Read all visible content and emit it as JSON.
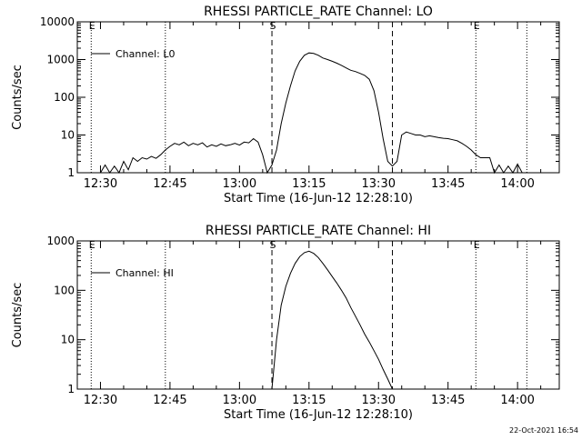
{
  "chart_data": [
    {
      "type": "line",
      "title": "RHESSI PARTICLE_RATE Channel: LO",
      "ylabel": "Counts/sec",
      "xlabel": "Start Time (16-Jun-12 12:28:10)",
      "yscale": "log",
      "ylim": [
        1,
        10000
      ],
      "xlim_minutes": [
        -5,
        99
      ],
      "yticks": [
        {
          "value": 1,
          "label": "1"
        },
        {
          "value": 10,
          "label": "10"
        },
        {
          "value": 100,
          "label": "100"
        },
        {
          "value": 1000,
          "label": "1000"
        },
        {
          "value": 10000,
          "label": "10000"
        }
      ],
      "xticks": [
        "12:30",
        "12:45",
        "13:00",
        "13:15",
        "13:30",
        "13:45",
        "14:00"
      ],
      "legend": {
        "label": "Channel: L0",
        "position": "top-left"
      },
      "markers": [
        {
          "time": "12:28",
          "style": "dotted",
          "label": "E"
        },
        {
          "time": "12:44",
          "style": "dotted",
          "label": ""
        },
        {
          "time": "13:07",
          "style": "dashed",
          "label": "S"
        },
        {
          "time": "13:33",
          "style": "dashed",
          "label": ""
        },
        {
          "time": "13:51",
          "style": "dotted",
          "label": "E"
        },
        {
          "time": "14:02",
          "style": "dotted",
          "label": ""
        }
      ],
      "series": [
        {
          "name": "Channel: L0",
          "points": [
            [
              "12:30",
              1
            ],
            [
              "12:31",
              1.6
            ],
            [
              "12:32",
              1
            ],
            [
              "12:33",
              1.5
            ],
            [
              "12:34",
              1
            ],
            [
              "12:35",
              2
            ],
            [
              "12:36",
              1.2
            ],
            [
              "12:37",
              2.5
            ],
            [
              "12:38",
              2
            ],
            [
              "12:39",
              2.5
            ],
            [
              "12:40",
              2.3
            ],
            [
              "12:41",
              2.7
            ],
            [
              "12:42",
              2.4
            ],
            [
              "12:43",
              3
            ],
            [
              "12:44",
              4
            ],
            [
              "12:45",
              5
            ],
            [
              "12:46",
              6
            ],
            [
              "12:47",
              5.5
            ],
            [
              "12:48",
              6.5
            ],
            [
              "12:49",
              5.2
            ],
            [
              "12:50",
              6
            ],
            [
              "12:51",
              5.5
            ],
            [
              "12:52",
              6.2
            ],
            [
              "12:53",
              4.8
            ],
            [
              "12:54",
              5.5
            ],
            [
              "12:55",
              5
            ],
            [
              "12:56",
              5.8
            ],
            [
              "12:57",
              5.2
            ],
            [
              "12:58",
              5.5
            ],
            [
              "12:59",
              6
            ],
            [
              "13:00",
              5.4
            ],
            [
              "13:01",
              6.5
            ],
            [
              "13:02",
              6.2
            ],
            [
              "13:03",
              8
            ],
            [
              "13:04",
              6.5
            ],
            [
              "13:05",
              3
            ],
            [
              "13:06",
              1
            ],
            [
              "13:07",
              1.6
            ],
            [
              "13:08",
              4
            ],
            [
              "13:09",
              20
            ],
            [
              "13:10",
              70
            ],
            [
              "13:11",
              200
            ],
            [
              "13:12",
              500
            ],
            [
              "13:13",
              900
            ],
            [
              "13:14",
              1300
            ],
            [
              "13:15",
              1500
            ],
            [
              "13:16",
              1450
            ],
            [
              "13:17",
              1300
            ],
            [
              "13:18",
              1100
            ],
            [
              "13:19",
              1000
            ],
            [
              "13:20",
              900
            ],
            [
              "13:21",
              800
            ],
            [
              "13:22",
              700
            ],
            [
              "13:23",
              600
            ],
            [
              "13:24",
              520
            ],
            [
              "13:25",
              480
            ],
            [
              "13:26",
              430
            ],
            [
              "13:27",
              380
            ],
            [
              "13:28",
              300
            ],
            [
              "13:29",
              150
            ],
            [
              "13:30",
              40
            ],
            [
              "13:31",
              8
            ],
            [
              "13:32",
              2
            ],
            [
              "13:33",
              1.5
            ],
            [
              "13:34",
              2
            ],
            [
              "13:35",
              10
            ],
            [
              "13:36",
              12
            ],
            [
              "13:37",
              11
            ],
            [
              "13:38",
              10
            ],
            [
              "13:39",
              10
            ],
            [
              "13:40",
              9
            ],
            [
              "13:41",
              9.5
            ],
            [
              "13:42",
              9
            ],
            [
              "13:43",
              8.5
            ],
            [
              "13:44",
              8.2
            ],
            [
              "13:45",
              8
            ],
            [
              "13:46",
              7.5
            ],
            [
              "13:47",
              7
            ],
            [
              "13:48",
              6
            ],
            [
              "13:49",
              5
            ],
            [
              "13:50",
              4
            ],
            [
              "13:51",
              3
            ],
            [
              "13:52",
              2.5
            ],
            [
              "13:53",
              2.5
            ],
            [
              "13:54",
              2.5
            ],
            [
              "13:55",
              1
            ],
            [
              "13:56",
              1.6
            ],
            [
              "13:57",
              1
            ],
            [
              "13:58",
              1.5
            ],
            [
              "13:59",
              1
            ],
            [
              "14:00",
              1.7
            ],
            [
              "14:01",
              1
            ]
          ]
        }
      ]
    },
    {
      "type": "line",
      "title": "RHESSI PARTICLE_RATE Channel: HI",
      "ylabel": "Counts/sec",
      "xlabel": "Start Time (16-Jun-12 12:28:10)",
      "yscale": "log",
      "ylim": [
        1,
        1000
      ],
      "xlim_minutes": [
        -5,
        99
      ],
      "yticks": [
        {
          "value": 1,
          "label": "1"
        },
        {
          "value": 10,
          "label": "10"
        },
        {
          "value": 100,
          "label": "100"
        },
        {
          "value": 1000,
          "label": "1000"
        }
      ],
      "xticks": [
        "12:30",
        "12:45",
        "13:00",
        "13:15",
        "13:30",
        "13:45",
        "14:00"
      ],
      "legend": {
        "label": "Channel: HI",
        "position": "top-left"
      },
      "markers": [
        {
          "time": "12:28",
          "style": "dotted",
          "label": "E"
        },
        {
          "time": "12:44",
          "style": "dotted",
          "label": ""
        },
        {
          "time": "13:07",
          "style": "dashed",
          "label": "S"
        },
        {
          "time": "13:33",
          "style": "dashed",
          "label": ""
        },
        {
          "time": "13:51",
          "style": "dotted",
          "label": "E"
        },
        {
          "time": "14:02",
          "style": "dotted",
          "label": ""
        }
      ],
      "series": [
        {
          "name": "Channel: HI",
          "points": [
            [
              "13:07",
              1
            ],
            [
              "13:08",
              10
            ],
            [
              "13:09",
              50
            ],
            [
              "13:10",
              120
            ],
            [
              "13:11",
              220
            ],
            [
              "13:12",
              350
            ],
            [
              "13:13",
              480
            ],
            [
              "13:14",
              580
            ],
            [
              "13:15",
              620
            ],
            [
              "13:16",
              560
            ],
            [
              "13:17",
              460
            ],
            [
              "13:18",
              350
            ],
            [
              "13:19",
              260
            ],
            [
              "13:20",
              190
            ],
            [
              "13:21",
              140
            ],
            [
              "13:22",
              100
            ],
            [
              "13:23",
              70
            ],
            [
              "13:24",
              45
            ],
            [
              "13:25",
              30
            ],
            [
              "13:26",
              20
            ],
            [
              "13:27",
              13
            ],
            [
              "13:28",
              9
            ],
            [
              "13:29",
              6
            ],
            [
              "13:30",
              4
            ],
            [
              "13:31",
              2.5
            ],
            [
              "13:32",
              1.6
            ],
            [
              "13:33",
              1
            ]
          ]
        }
      ]
    }
  ],
  "footer": {
    "timestamp": "22-Oct-2021 16:54"
  }
}
